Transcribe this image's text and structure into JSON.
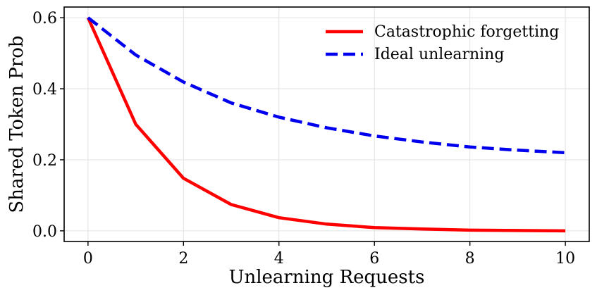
{
  "chart_data": {
    "type": "line",
    "xlabel": "Unlearning Requests",
    "ylabel": "Shared Token Prob",
    "xlim": [
      -0.5,
      10.5
    ],
    "ylim": [
      -0.03,
      0.63
    ],
    "xticks": [
      0,
      2,
      4,
      6,
      8,
      10
    ],
    "yticks": [
      0.0,
      0.2,
      0.4,
      0.6
    ],
    "xtick_labels": [
      "0",
      "2",
      "4",
      "6",
      "8",
      "10"
    ],
    "ytick_labels": [
      "0.0",
      "0.2",
      "0.4",
      "0.6"
    ],
    "grid": true,
    "legend_position": "top-right",
    "x": [
      0,
      1,
      2,
      3,
      4,
      5,
      6,
      7,
      8,
      9,
      10
    ],
    "series": [
      {
        "name": "Catastrophic forgetting",
        "color": "#ff0000",
        "style": "solid",
        "values": [
          0.6,
          0.3,
          0.148,
          0.074,
          0.037,
          0.019,
          0.009,
          0.005,
          0.002,
          0.001,
          0.0
        ]
      },
      {
        "name": "Ideal unlearning",
        "color": "#0000ee",
        "style": "dashed",
        "values": [
          0.6,
          0.495,
          0.419,
          0.36,
          0.32,
          0.29,
          0.267,
          0.25,
          0.236,
          0.227,
          0.22
        ]
      }
    ]
  }
}
